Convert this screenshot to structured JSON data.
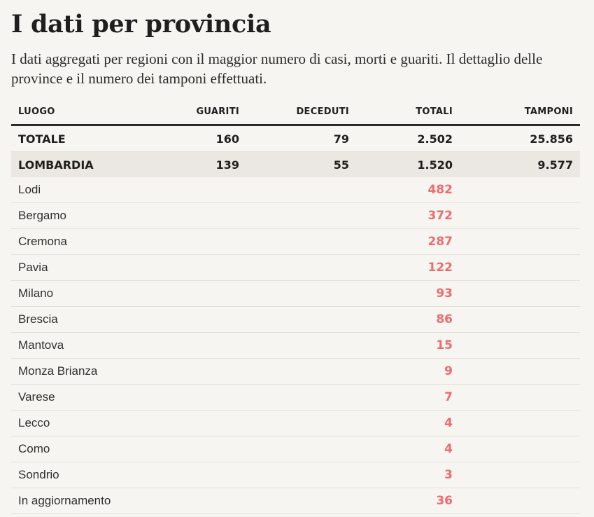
{
  "title": "I dati per provincia",
  "intro": "I dati aggregati per regioni con il maggior numero di casi, morti e guariti. Il dettaglio delle province e il numero dei tamponi effettuati.",
  "table": {
    "headers": {
      "luogo": "LUOGO",
      "guariti": "GUARITI",
      "deceduti": "DECEDUTI",
      "totali": "TOTALI",
      "tamponi": "TAMPONI"
    },
    "totale": {
      "luogo": "TOTALE",
      "guariti": "160",
      "deceduti": "79",
      "totali": "2.502",
      "tamponi": "25.856"
    },
    "regione": {
      "luogo": "LOMBARDIA",
      "guariti": "139",
      "deceduti": "55",
      "totali": "1.520",
      "tamponi": "9.577"
    },
    "province": [
      {
        "luogo": "Lodi",
        "totali": "482"
      },
      {
        "luogo": "Bergamo",
        "totali": "372"
      },
      {
        "luogo": "Cremona",
        "totali": "287"
      },
      {
        "luogo": "Pavia",
        "totali": "122"
      },
      {
        "luogo": "Milano",
        "totali": "93"
      },
      {
        "luogo": "Brescia",
        "totali": "86"
      },
      {
        "luogo": "Mantova",
        "totali": "15"
      },
      {
        "luogo": "Monza Brianza",
        "totali": "9"
      },
      {
        "luogo": "Varese",
        "totali": "7"
      },
      {
        "luogo": "Lecco",
        "totali": "4"
      },
      {
        "luogo": "Como",
        "totali": "4"
      },
      {
        "luogo": "Sondrio",
        "totali": "3"
      },
      {
        "luogo": "In aggiornamento",
        "totali": "36"
      }
    ]
  },
  "colors": {
    "guariti": "#1fa884",
    "totali": "#ee6b6e",
    "background": "#f7f5f1",
    "region_row": "#ebe7e2"
  }
}
